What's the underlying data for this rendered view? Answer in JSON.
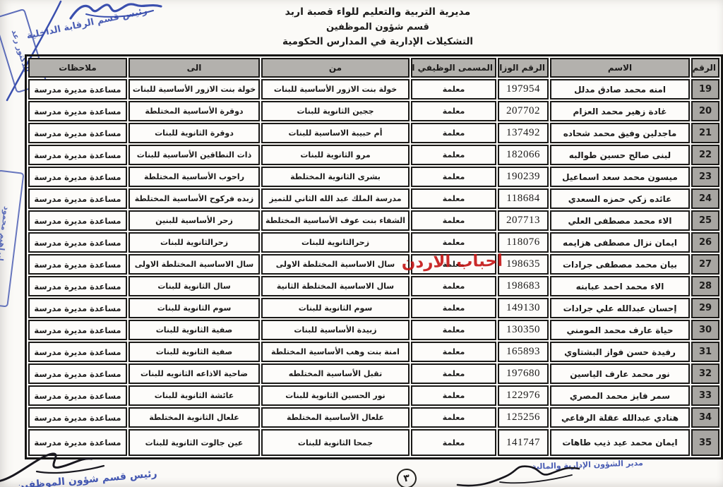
{
  "doc_header": {
    "line1": "مديرية التربية والتعليم للواء قصبة اربد",
    "line2": "قسم شؤون الموظفين",
    "line3": "التشكيلات الإدارية في المدارس الحكومية"
  },
  "table": {
    "headers": {
      "num": "الرقم",
      "name": "الاسم",
      "ministry_no": "الرقم الوزاري",
      "job_title": "المسمى الوظيفي الحالي",
      "from": "من",
      "to": "الى",
      "notes": "ملاحظات"
    },
    "rows": [
      {
        "num": "19",
        "name": "امنه محمد صادق مدلل",
        "ministry_no": "197954",
        "job_title": "معلمة",
        "from": "خولة بنت الازور الأساسية للبنات",
        "to": "خولة بنت الازور الأساسية للبنات",
        "notes": "مساعدة مديرة مدرسة"
      },
      {
        "num": "20",
        "name": "غادة زهير محمد العزام",
        "ministry_no": "207702",
        "job_title": "معلمة",
        "from": "ججين الثانوية للبنات",
        "to": "دوقرة الأساسية المختلطة",
        "notes": "مساعدة مديرة مدرسة"
      },
      {
        "num": "21",
        "name": "ماجدلين وفيق محمد شحاده",
        "ministry_no": "137492",
        "job_title": "معلمة",
        "from": "أم حبيبة الاساسية للبنات",
        "to": "دوقرة الثانوية للبنات",
        "notes": "مساعدة مديرة مدرسة"
      },
      {
        "num": "22",
        "name": "لبنى صالح حسين طوالبه",
        "ministry_no": "182066",
        "job_title": "معلمة",
        "from": "مرو الثانوية للبنات",
        "to": "ذات النطاقين الأساسية للبنات",
        "notes": "مساعدة مديرة مدرسة"
      },
      {
        "num": "23",
        "name": "ميسون محمد سعد اسماعيل",
        "ministry_no": "190239",
        "job_title": "معلمة",
        "from": "بشرى الثانوية المختلطة",
        "to": "راحوب الأساسية المختلطة",
        "notes": "مساعدة مديرة مدرسة"
      },
      {
        "num": "24",
        "name": "عائده زكي حمزه السعدي",
        "ministry_no": "118684",
        "job_title": "معلمة",
        "from": "مدرسة الملك عبد الله الثاني للتميز",
        "to": "زبده فركوح الأساسية المختلطة",
        "notes": "مساعدة مديرة مدرسة"
      },
      {
        "num": "25",
        "name": "الاء محمد مصطفى العلي",
        "ministry_no": "207713",
        "job_title": "معلمة",
        "from": "الشفاء بنت عوف الأساسية المختلطة",
        "to": "زحر الأساسية للبنين",
        "notes": "مساعدة مديرة مدرسة"
      },
      {
        "num": "26",
        "name": "ايمان نزال مصطفى هزايمه",
        "ministry_no": "118076",
        "job_title": "معلمة",
        "from": "زحرالثانوية للبنات",
        "to": "زحرالثانوية للبنات",
        "notes": "مساعدة مديرة مدرسة"
      },
      {
        "num": "27",
        "name": "بيان محمد مصطفى جرادات",
        "ministry_no": "198635",
        "job_title": "معلمة",
        "from": "سال الاساسية المختلطة الاولى",
        "to": "سال الاساسية المختلطة الاولى",
        "notes": "مساعدة مديرة مدرسة"
      },
      {
        "num": "28",
        "name": "الاء محمد احمد عبابنه",
        "ministry_no": "198683",
        "job_title": "معلمة",
        "from": "سال الاساسية المختلطة الثانية",
        "to": "سال الثانوية للبنات",
        "notes": "مساعدة مديرة مدرسة"
      },
      {
        "num": "29",
        "name": "إحسان عبدالله علي جرادات",
        "ministry_no": "149130",
        "job_title": "معلمة",
        "from": "سوم الثانوية للبنات",
        "to": "سوم الثانوية للبنات",
        "notes": "مساعدة مديرة مدرسة"
      },
      {
        "num": "30",
        "name": "حياة عارف محمد المومني",
        "ministry_no": "130350",
        "job_title": "معلمة",
        "from": "زبيدة الأساسية للبنات",
        "to": "صفية الثانوية للبنات",
        "notes": "مساعدة مديرة مدرسة"
      },
      {
        "num": "31",
        "name": "رفيدة حسن فواز البشتاوي",
        "ministry_no": "165893",
        "job_title": "معلمة",
        "from": "امنة بنت وهب الأساسية المختلطة",
        "to": "صفية الثانوية للبنات",
        "notes": "مساعدة مديرة مدرسة"
      },
      {
        "num": "32",
        "name": "نور محمد عارف الياسين",
        "ministry_no": "197680",
        "job_title": "معلمة",
        "from": "تقبل الأساسية المختلطه",
        "to": "ضاحية الاذاعه الثانويه للبنات",
        "notes": "مساعدة مديرة مدرسة"
      },
      {
        "num": "33",
        "name": "سمر فايز محمد المصري",
        "ministry_no": "122976",
        "job_title": "معلمة",
        "from": "نور الحسين الثانوية للبنات",
        "to": "عائشة الثانوية للبنات",
        "notes": "مساعدة مديرة مدرسة"
      },
      {
        "num": "34",
        "name": "هنادي عبدالله عقلة الرفاعي",
        "ministry_no": "125256",
        "job_title": "معلمة",
        "from": "علعال الأساسية المختلطة",
        "to": "علعال الثانوية المختلطة",
        "notes": "مساعدة مديرة مدرسة"
      },
      {
        "num": "35",
        "name": "ايمان محمد عيد ذيب طاهات",
        "ministry_no": "141747",
        "job_title": "معلمة",
        "from": "جمحا الثانوية للبنات",
        "to": "عين جالوت الثانوية للبنات",
        "notes": "مساعدة مديرة مدرسة"
      }
    ]
  },
  "annotations": {
    "top_left_title": "رئيس قسم الرقابة الداخلية",
    "top_left_stamp_name": "الدكتور رعد",
    "left_edge_stamp_name": "د. إبراهيم محمود",
    "bottom_left_title": "رئيس قسم شؤون الموظفين",
    "bottom_right_title": "مدير الشؤون الإدارية والمالية",
    "watermark": "احباب الاردن",
    "page_number": "٣"
  },
  "colors": {
    "stamp_blue": "#3a4fae",
    "watermark_red": "#c41414",
    "header_gray": "#b3b1ad",
    "num_col_gray": "#a8a6a2"
  }
}
